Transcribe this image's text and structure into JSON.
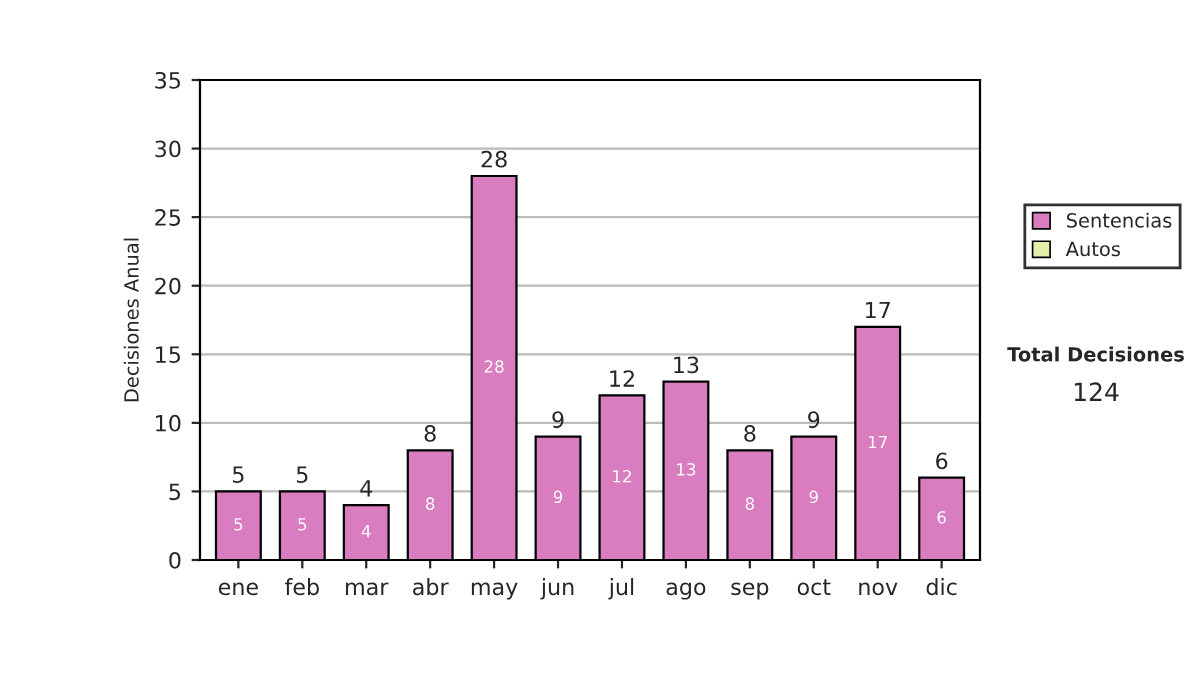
{
  "chart_data": {
    "type": "bar",
    "ylabel": "Decisiones Anual",
    "categories": [
      "ene",
      "feb",
      "mar",
      "abr",
      "may",
      "jun",
      "jul",
      "ago",
      "sep",
      "oct",
      "nov",
      "dic"
    ],
    "series": [
      {
        "name": "Sentencias",
        "color": "#d97cc0",
        "values": [
          5,
          5,
          4,
          8,
          28,
          9,
          12,
          13,
          8,
          9,
          17,
          6
        ],
        "value_labels": [
          "5",
          "5",
          "4",
          "8",
          "28",
          "9",
          "12",
          "13",
          "8",
          "9",
          "17",
          "6"
        ]
      },
      {
        "name": "Autos",
        "color": "#e6eeaa",
        "values": [
          null,
          null,
          null,
          null,
          null,
          null,
          null,
          null,
          null,
          null,
          null,
          null
        ]
      }
    ],
    "stacked": true,
    "totals": [
      "5",
      "5",
      "4",
      "8",
      "28",
      "9",
      "12",
      "13",
      "8",
      "9",
      "17",
      "6"
    ],
    "ylim": [
      0,
      35
    ],
    "yticks": [
      0,
      5,
      10,
      15,
      20,
      25,
      30,
      35
    ],
    "grid": "y",
    "legend": "right",
    "annotations": [
      "Total Decisiones",
      "124"
    ]
  }
}
